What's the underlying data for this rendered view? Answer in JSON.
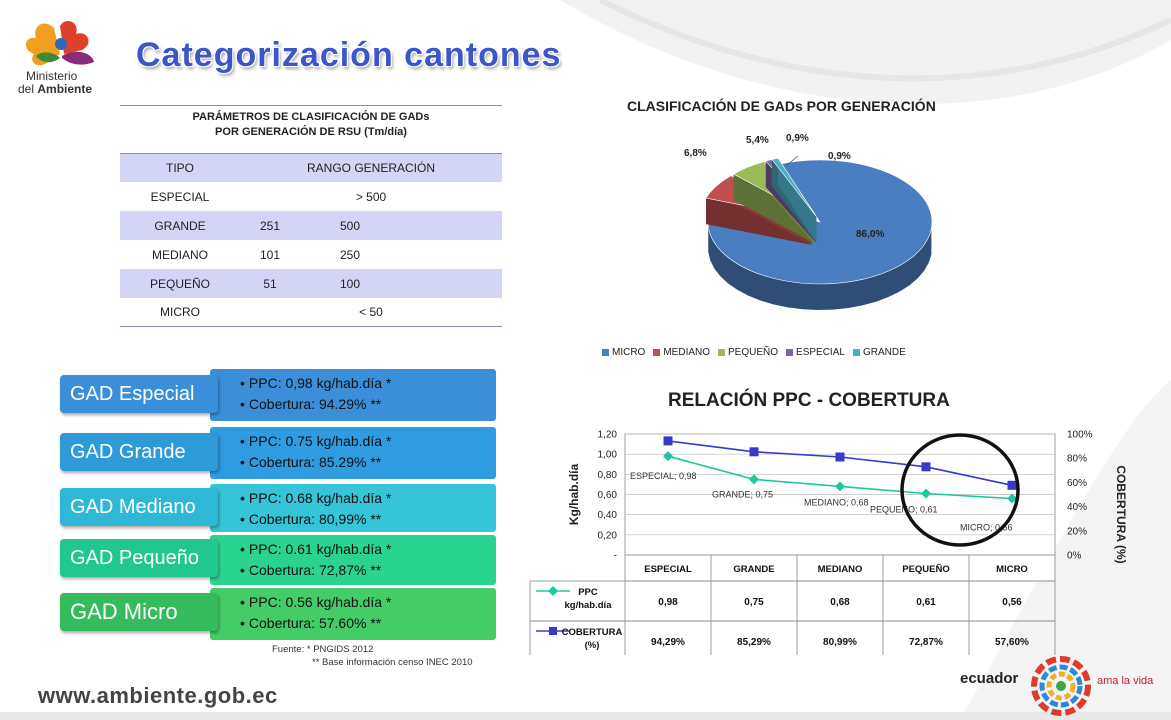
{
  "title": "Categorización cantones",
  "logo": {
    "line1": "Ministerio",
    "line2a": "del ",
    "line2b": "Ambiente"
  },
  "params": {
    "caption1": "PARÁMETROS DE CLASIFICACIÓN DE GADs",
    "caption2": "POR GENERACIÓN DE RSU (Tm/día)",
    "head_tipo": "TIPO",
    "head_rango": "RANGO  GENERACIÓN",
    "rows": [
      {
        "tipo": "ESPECIAL",
        "rango": ">  500"
      },
      {
        "tipo": "GRANDE",
        "min": "251",
        "max": "500"
      },
      {
        "tipo": "MEDIANO",
        "min": "101",
        "max": "250"
      },
      {
        "tipo": "PEQUEÑO",
        "min": "51",
        "max": "100"
      },
      {
        "tipo": "MICRO",
        "rango": "<  50"
      }
    ]
  },
  "gads": [
    {
      "label": "GAD Especial",
      "ppc": "PPC: 0,98 kg/hab.día *",
      "cob": "Cobertura: 94.29% **",
      "color": "#3a8fd8",
      "bar": "#3a8fd8"
    },
    {
      "label": "GAD Grande",
      "ppc": "PPC: 0.75 kg/hab.día *",
      "cob": "Cobertura: 85.29% **",
      "color": "#2e9ad8",
      "bar": "#2f9be0"
    },
    {
      "label": "GAD Mediano",
      "ppc": "PPC: 0.68 kg/hab.día *",
      "cob": "Cobertura: 80,99% **",
      "color": "#2fb8d6",
      "bar": "#36c4d8"
    },
    {
      "label": "GAD Pequeño",
      "ppc": "PPC: 0.61 kg/hab.día *",
      "cob": "Cobertura: 72,87% **",
      "color": "#22c690",
      "bar": "#2bd48e"
    },
    {
      "label": "GAD Micro",
      "ppc": "PPC: 0.56 kg/hab.día *",
      "cob": "Cobertura: 57.60% **",
      "color": "#33bb5c",
      "bar": "#44cc66"
    }
  ],
  "fuente": {
    "line1": "Fuente:  *   PNGIDS 2012",
    "line2": "** Base información censo INEC 2010"
  },
  "footer": {
    "url": "www.ambiente.gob.ec",
    "brand": "ecuador",
    "slogan": "ama la vida"
  },
  "chart_data": [
    {
      "type": "pie",
      "title": "CLASIFICACIÓN DE GADs POR GENERACIÓN",
      "categories": [
        "MICRO",
        "MEDIANO",
        "PEQUEÑO",
        "ESPECIAL",
        "GRANDE"
      ],
      "values": [
        86.0,
        6.8,
        5.4,
        0.9,
        0.9
      ],
      "labels": [
        "86,0%",
        "6,8%",
        "5,4%",
        "0,9%",
        "0,9%"
      ],
      "colors": [
        "#4a7ec0",
        "#c0504d",
        "#9bbb59",
        "#8064a2",
        "#4bacc6"
      ],
      "legend": "bottom"
    },
    {
      "type": "line",
      "title": "RELACIÓN PPC - COBERTURA",
      "categories": [
        "ESPECIAL",
        "GRANDE",
        "MEDIANO",
        "PEQUEÑO",
        "MICRO"
      ],
      "ylabel": "Kg/hab.día",
      "y2label": "COBERTURA (%)",
      "yticks": [
        "-",
        "0,20",
        "0,40",
        "0,60",
        "0,80",
        "1,00",
        "1,20"
      ],
      "y2ticks": [
        "0%",
        "20%",
        "40%",
        "60%",
        "80%",
        "100%"
      ],
      "ylim": [
        0,
        1.2
      ],
      "y2lim": [
        0,
        100
      ],
      "series": [
        {
          "name": "PPC kg/hab.día",
          "values": [
            0.98,
            0.75,
            0.68,
            0.61,
            0.56
          ],
          "table": [
            "0,98",
            "0,75",
            "0,68",
            "0,61",
            "0,56"
          ],
          "color": "#1cc8a0",
          "axis": "left",
          "point_labels": [
            "ESPECIAL; 0,98",
            "GRANDE; 0,75",
            "MEDIANO; 0,68",
            "PEQUEÑO; 0,61",
            "MICRO; 0,56"
          ]
        },
        {
          "name": "COBERTURA (%)",
          "values": [
            94.29,
            85.29,
            80.99,
            72.87,
            57.6
          ],
          "table": [
            "94,29%",
            "85,29%",
            "80,99%",
            "72,87%",
            "57,60%"
          ],
          "color": "#3a3ac8",
          "axis": "right"
        }
      ],
      "grid": true
    }
  ]
}
